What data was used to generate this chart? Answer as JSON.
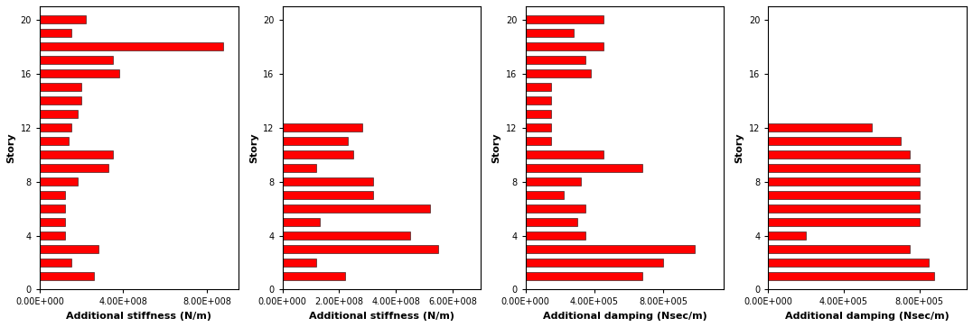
{
  "subplot1": {
    "xlabel": "Additional stiffness (N/m)",
    "ylabel": "Story",
    "xlim_max": 950000000.0,
    "xtick_vals": [
      0.0,
      400000000.0,
      800000000.0
    ],
    "xtick_labels": [
      "0.00E+000",
      "4.00E+008",
      "8.00E+008"
    ],
    "yticks": [
      0,
      4,
      8,
      12,
      16,
      20
    ],
    "stories": [
      1,
      2,
      3,
      4,
      5,
      6,
      7,
      8,
      9,
      10,
      11,
      12,
      13,
      14,
      15,
      16,
      17,
      18,
      19,
      20
    ],
    "values": [
      260000000.0,
      150000000.0,
      280000000.0,
      120000000.0,
      120000000.0,
      120000000.0,
      120000000.0,
      180000000.0,
      330000000.0,
      350000000.0,
      140000000.0,
      150000000.0,
      180000000.0,
      200000000.0,
      200000000.0,
      380000000.0,
      350000000.0,
      880000000.0,
      150000000.0,
      220000000.0
    ]
  },
  "subplot2": {
    "xlabel": "Additional stiffness (N/m)",
    "ylabel": "Story",
    "xlim_max": 700000000.0,
    "xtick_vals": [
      0.0,
      200000000.0,
      400000000.0,
      600000000.0
    ],
    "xtick_labels": [
      "0.00E+000",
      "2.00E+008",
      "4.00E+008",
      "6.00E+008"
    ],
    "yticks": [
      0,
      4,
      8,
      12,
      16,
      20
    ],
    "stories": [
      1,
      2,
      3,
      4,
      5,
      6,
      7,
      8,
      9,
      10,
      11,
      12,
      13,
      14,
      15,
      16,
      17,
      18,
      19,
      20
    ],
    "values": [
      220000000.0,
      120000000.0,
      550000000.0,
      450000000.0,
      130000000.0,
      520000000.0,
      320000000.0,
      320000000.0,
      120000000.0,
      250000000.0,
      230000000.0,
      280000000.0,
      0,
      0,
      0,
      0,
      0,
      0,
      0,
      0
    ]
  },
  "subplot3": {
    "xlabel": "Additional damping (Nsec/m)",
    "ylabel": "Story",
    "xlim_max": 1150000.0,
    "xtick_vals": [
      0.0,
      400000.0,
      800000.0
    ],
    "xtick_labels": [
      "0.00E+000",
      "4.00E+005",
      "8.00E+005"
    ],
    "yticks": [
      0,
      4,
      8,
      12,
      16,
      20
    ],
    "stories": [
      1,
      2,
      3,
      4,
      5,
      6,
      7,
      8,
      9,
      10,
      11,
      12,
      13,
      14,
      15,
      16,
      17,
      18,
      19,
      20
    ],
    "values": [
      680000.0,
      800000.0,
      980000.0,
      350000.0,
      300000.0,
      350000.0,
      220000.0,
      320000.0,
      680000.0,
      450000.0,
      150000.0,
      150000.0,
      150000.0,
      150000.0,
      150000.0,
      380000.0,
      350000.0,
      450000.0,
      280000.0,
      450000.0
    ]
  },
  "subplot4": {
    "xlabel": "Additional damping (Nsec/m)",
    "ylabel": "Story",
    "xlim_max": 1050000.0,
    "xtick_vals": [
      0.0,
      400000.0,
      800000.0
    ],
    "xtick_labels": [
      "0.00E+000",
      "4.00E+005",
      "8.00E+005"
    ],
    "yticks": [
      0,
      4,
      8,
      12,
      16,
      20
    ],
    "stories": [
      1,
      2,
      3,
      4,
      5,
      6,
      7,
      8,
      9,
      10,
      11,
      12,
      13,
      14,
      15,
      16,
      17,
      18,
      19,
      20
    ],
    "values": [
      880000.0,
      850000.0,
      750000.0,
      200000.0,
      800000.0,
      800000.0,
      800000.0,
      800000.0,
      800000.0,
      750000.0,
      700000.0,
      550000.0,
      0,
      0,
      0,
      0,
      0,
      0,
      0,
      0
    ]
  },
  "bar_color": "#ff0000",
  "bar_edgecolor": "#111111",
  "bar_linewidth": 0.4,
  "bar_height": 0.6,
  "fig_width": 10.77,
  "fig_height": 3.63,
  "tick_fontsize": 7,
  "label_fontsize": 8,
  "ylim_max": 21.0,
  "ylim_min": 0.0
}
